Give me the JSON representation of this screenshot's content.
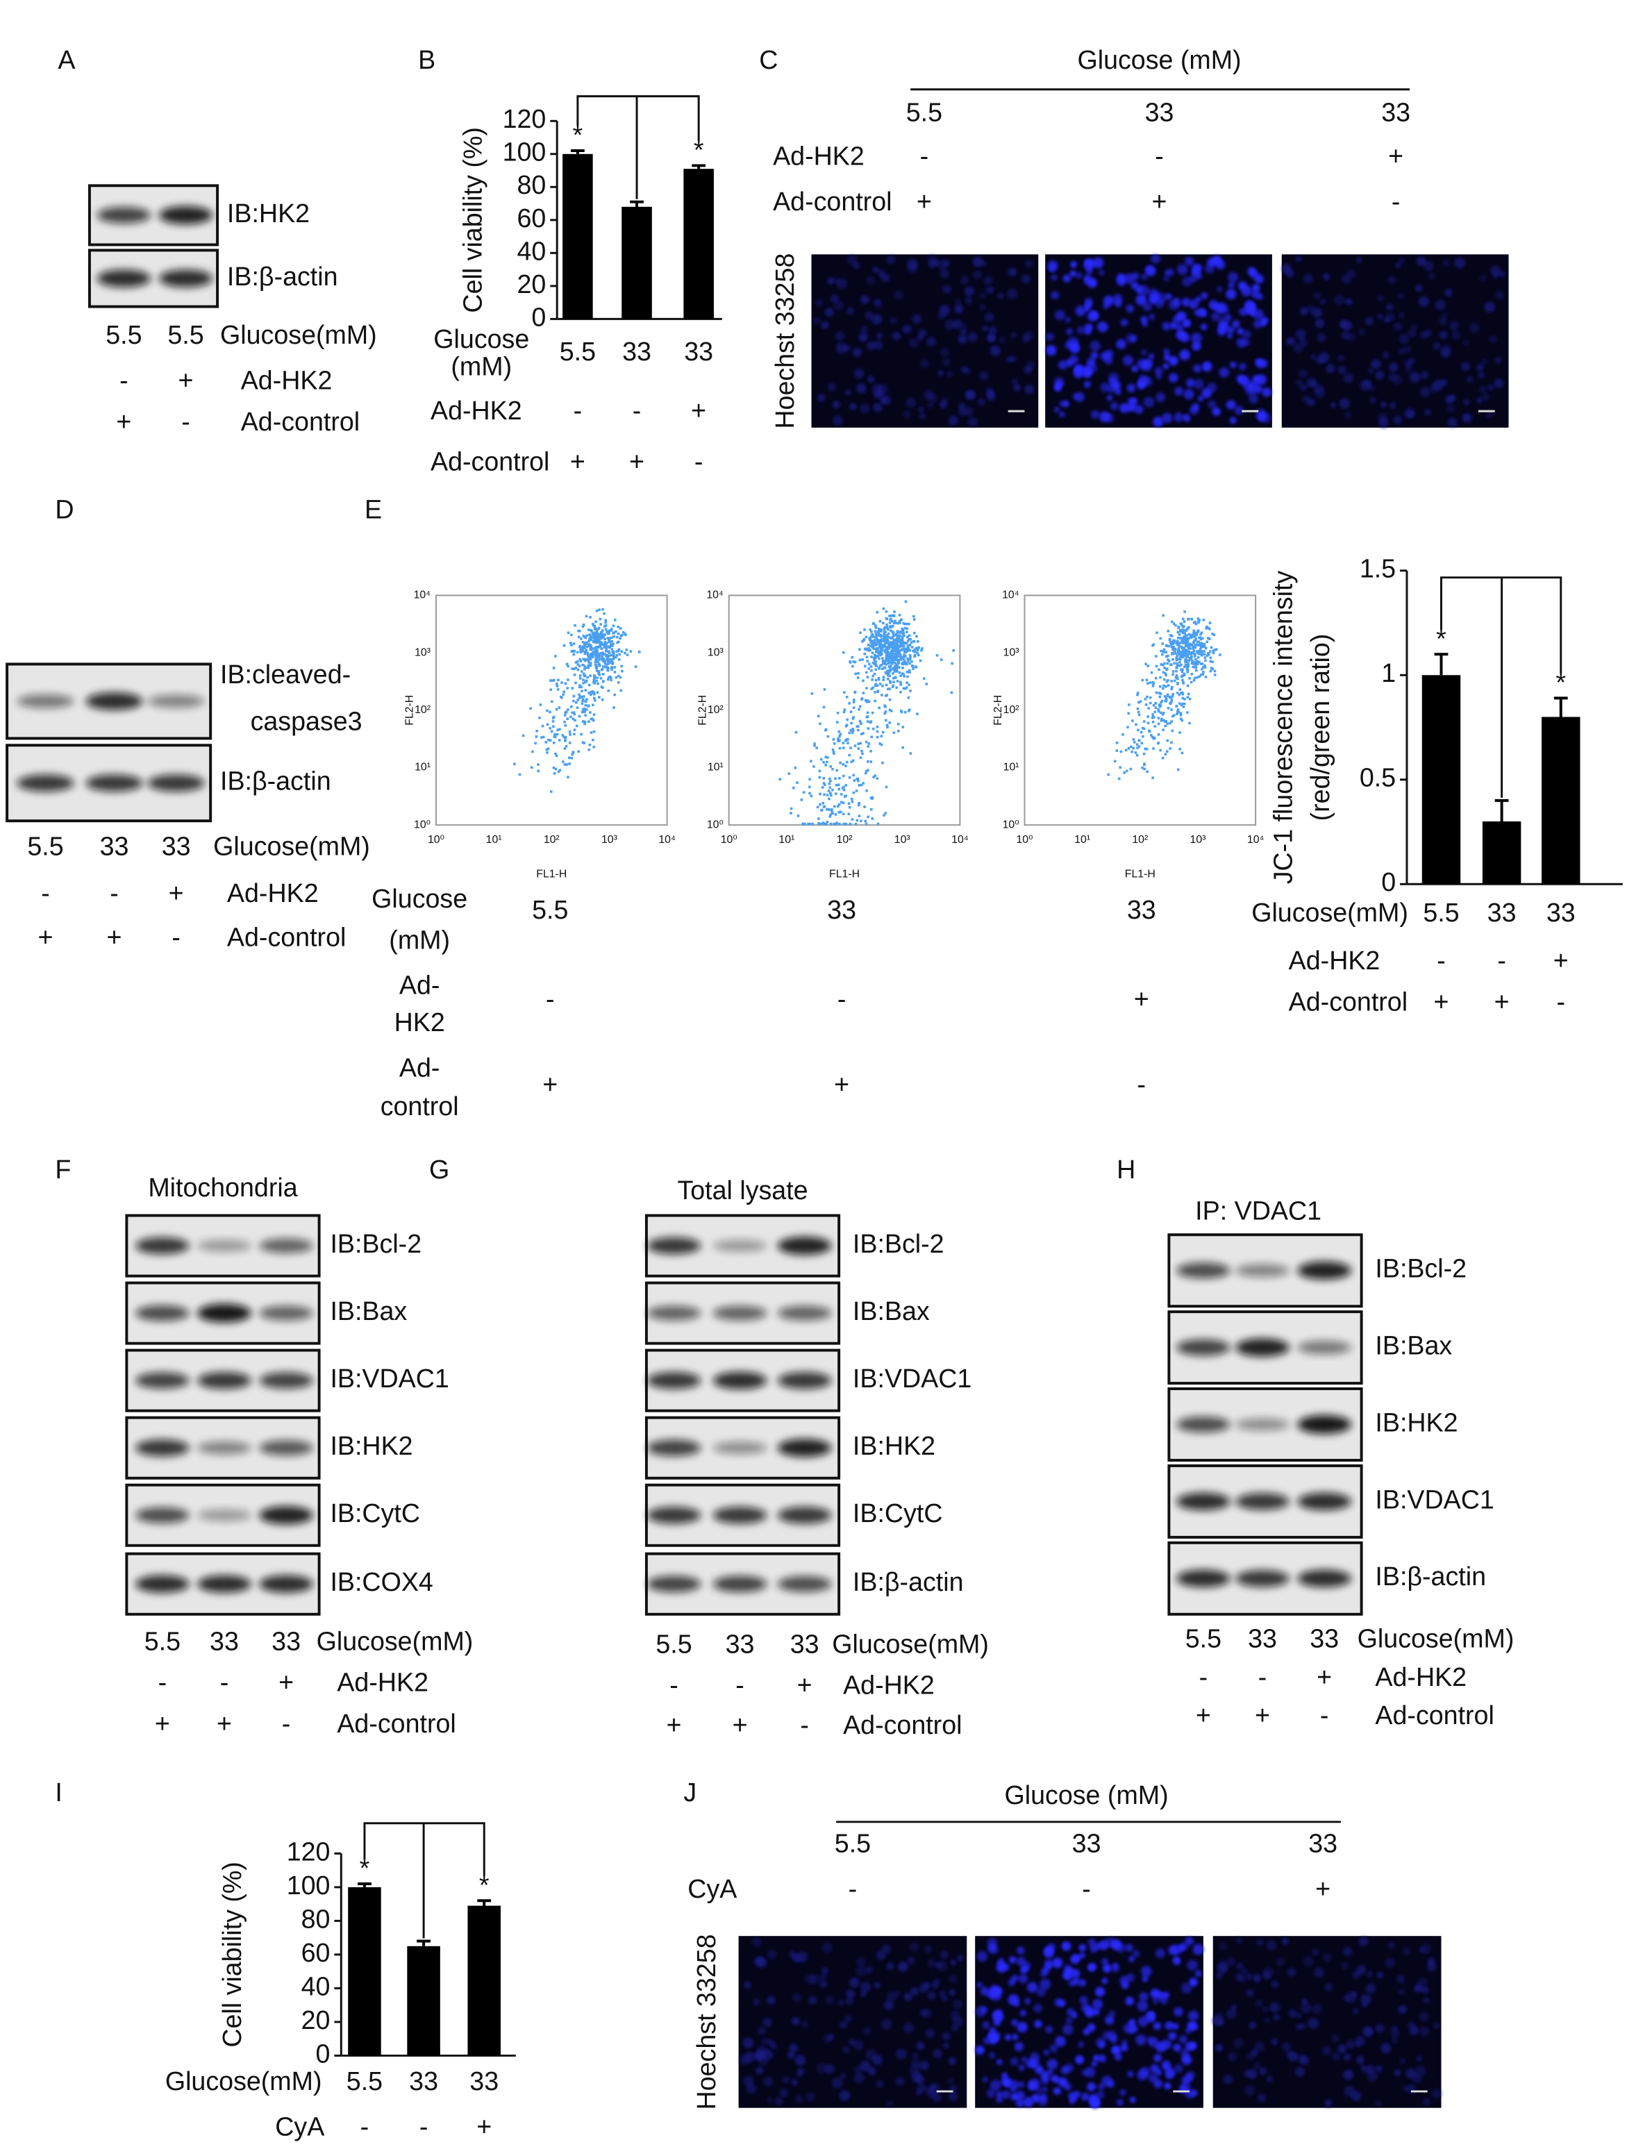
{
  "letters": [
    "A",
    "B",
    "C",
    "D",
    "E",
    "F",
    "G",
    "H",
    "I",
    "J"
  ],
  "blot_panels": [
    {
      "blots": [
        [
          "IB:HK2"
        ],
        [
          "IB:β-actin"
        ]
      ],
      "conditions": [
        {
          "label": "Glucose(mM)",
          "values": [
            "5.5",
            "5.5"
          ]
        },
        {
          "label": "Ad-HK2",
          "values": [
            "-",
            "+"
          ]
        },
        {
          "label": "Ad-control",
          "values": [
            "+",
            "-"
          ]
        }
      ]
    },
    {
      "blots": [
        [
          "IB:cleaved-",
          "caspase3"
        ],
        [
          "IB:β-actin"
        ]
      ],
      "conditions": [
        {
          "label": "Glucose(mM)",
          "values": [
            "5.5",
            "33",
            "33"
          ]
        },
        {
          "label": "Ad-HK2",
          "values": [
            "-",
            "-",
            "+"
          ]
        },
        {
          "label": "Ad-control",
          "values": [
            "+",
            "+",
            "-"
          ]
        }
      ]
    },
    {
      "heading": "Mitochondria",
      "blots": [
        [
          "IB:Bcl-2"
        ],
        [
          "IB:Bax"
        ],
        [
          "IB:VDAC1"
        ],
        [
          "IB:HK2"
        ],
        [
          "IB:CytC"
        ],
        [
          "IB:COX4"
        ]
      ],
      "conditions": [
        {
          "label": "Glucose(mM)",
          "values": [
            "5.5",
            "33",
            "33"
          ]
        },
        {
          "label": "Ad-HK2",
          "values": [
            "-",
            "-",
            "+"
          ]
        },
        {
          "label": "Ad-control",
          "values": [
            "+",
            "+",
            "-"
          ]
        }
      ]
    },
    {
      "heading": "Total lysate",
      "blots": [
        [
          "IB:Bcl-2"
        ],
        [
          "IB:Bax"
        ],
        [
          "IB:VDAC1"
        ],
        [
          "IB:HK2"
        ],
        [
          "IB:CytC"
        ],
        [
          "IB:β-actin"
        ]
      ],
      "conditions": [
        {
          "label": "Glucose(mM)",
          "values": [
            "5.5",
            "33",
            "33"
          ]
        },
        {
          "label": "Ad-HK2",
          "values": [
            "-",
            "-",
            "+"
          ]
        },
        {
          "label": "Ad-control",
          "values": [
            "+",
            "+",
            "-"
          ]
        }
      ]
    },
    {
      "heading": "IP: VDAC1",
      "blots": [
        [
          "IB:Bcl-2"
        ],
        [
          "IB:Bax"
        ],
        [
          "IB:HK2"
        ],
        [
          "IB:VDAC1"
        ],
        [
          "IB:β-actin"
        ]
      ],
      "conditions": [
        {
          "label": "Glucose(mM)",
          "values": [
            "5.5",
            "33",
            "33"
          ]
        },
        {
          "label": "Ad-HK2",
          "values": [
            "-",
            "-",
            "+"
          ]
        },
        {
          "label": "Ad-control",
          "values": [
            "+",
            "+",
            "-"
          ]
        }
      ]
    }
  ],
  "image_panels": [
    {
      "header": "Glucose (mM)",
      "glucose": [
        "5.5",
        "33",
        "33"
      ],
      "rows": [
        {
          "label": "Ad-HK2",
          "values": [
            "-",
            "-",
            "+"
          ]
        },
        {
          "label": "Ad-control",
          "values": [
            "+",
            "+",
            "-"
          ]
        }
      ],
      "stain": "Hoechst 33258"
    },
    {
      "header": "Glucose (mM)",
      "glucose": [
        "5.5",
        "33",
        "33"
      ],
      "rows": [
        {
          "label": "CyA",
          "values": [
            "-",
            "-",
            "+"
          ]
        }
      ],
      "stain": "Hoechst 33258"
    }
  ],
  "flow": {
    "y_label": "FL2-H",
    "x_label": "FL1-H",
    "ticks": [
      "10⁰",
      "10¹",
      "10²",
      "10³",
      "10⁴"
    ],
    "conditions": [
      {
        "label": [
          "Glucose",
          "(mM)"
        ],
        "values": [
          "5.5",
          "33",
          "33"
        ]
      },
      {
        "label": [
          "Ad-",
          "HK2"
        ],
        "values": [
          "-",
          "-",
          "+"
        ]
      },
      {
        "label": [
          "Ad-",
          "control"
        ],
        "values": [
          "+",
          "+",
          "-"
        ]
      }
    ]
  },
  "chart_data": [
    {
      "type": "bar",
      "y_label": [
        "Cell viability (%)"
      ],
      "x_label": [
        "Glucose",
        "(mM)"
      ],
      "categories": [
        "5.5",
        "33",
        "33"
      ],
      "values": [
        100,
        68,
        91
      ],
      "errors": [
        2,
        3,
        2
      ],
      "color": "#000000",
      "ylim": [
        0,
        120
      ],
      "yticks": [
        0,
        20,
        40,
        60,
        80,
        100,
        120
      ],
      "significance": [
        "*",
        null,
        "*"
      ],
      "conditions": [
        {
          "label": "Ad-HK2",
          "values": [
            "-",
            "-",
            "+"
          ]
        },
        {
          "label": "Ad-control",
          "values": [
            "+",
            "+",
            "-"
          ]
        }
      ]
    },
    {
      "type": "bar",
      "y_label": [
        "JC-1 fluorescence intensity",
        "(red/green ratio)"
      ],
      "x_label": [
        "Glucose(mM)"
      ],
      "categories": [
        "5.5",
        "33",
        "33"
      ],
      "values": [
        1.0,
        0.3,
        0.8
      ],
      "errors": [
        0.1,
        0.1,
        0.09
      ],
      "color": "#000000",
      "ylim": [
        0,
        1.5
      ],
      "yticks": [
        0,
        0.5,
        1,
        1.5
      ],
      "significance": [
        "*",
        null,
        "*"
      ],
      "conditions": [
        {
          "label": "Ad-HK2",
          "values": [
            "-",
            "-",
            "+"
          ]
        },
        {
          "label": "Ad-control",
          "values": [
            "+",
            "+",
            "-"
          ]
        }
      ]
    },
    {
      "type": "bar",
      "y_label": [
        "Cell viability (%)"
      ],
      "x_label": [
        "Glucose(mM)"
      ],
      "categories": [
        "5.5",
        "33",
        "33"
      ],
      "values": [
        100,
        65,
        89
      ],
      "errors": [
        2,
        3,
        3
      ],
      "color": "#000000",
      "ylim": [
        0,
        120
      ],
      "yticks": [
        0,
        20,
        40,
        60,
        80,
        100,
        120
      ],
      "significance": [
        "*",
        null,
        "*"
      ],
      "conditions": [
        {
          "label": "CyA",
          "values": [
            "-",
            "-",
            "+"
          ]
        }
      ]
    }
  ]
}
